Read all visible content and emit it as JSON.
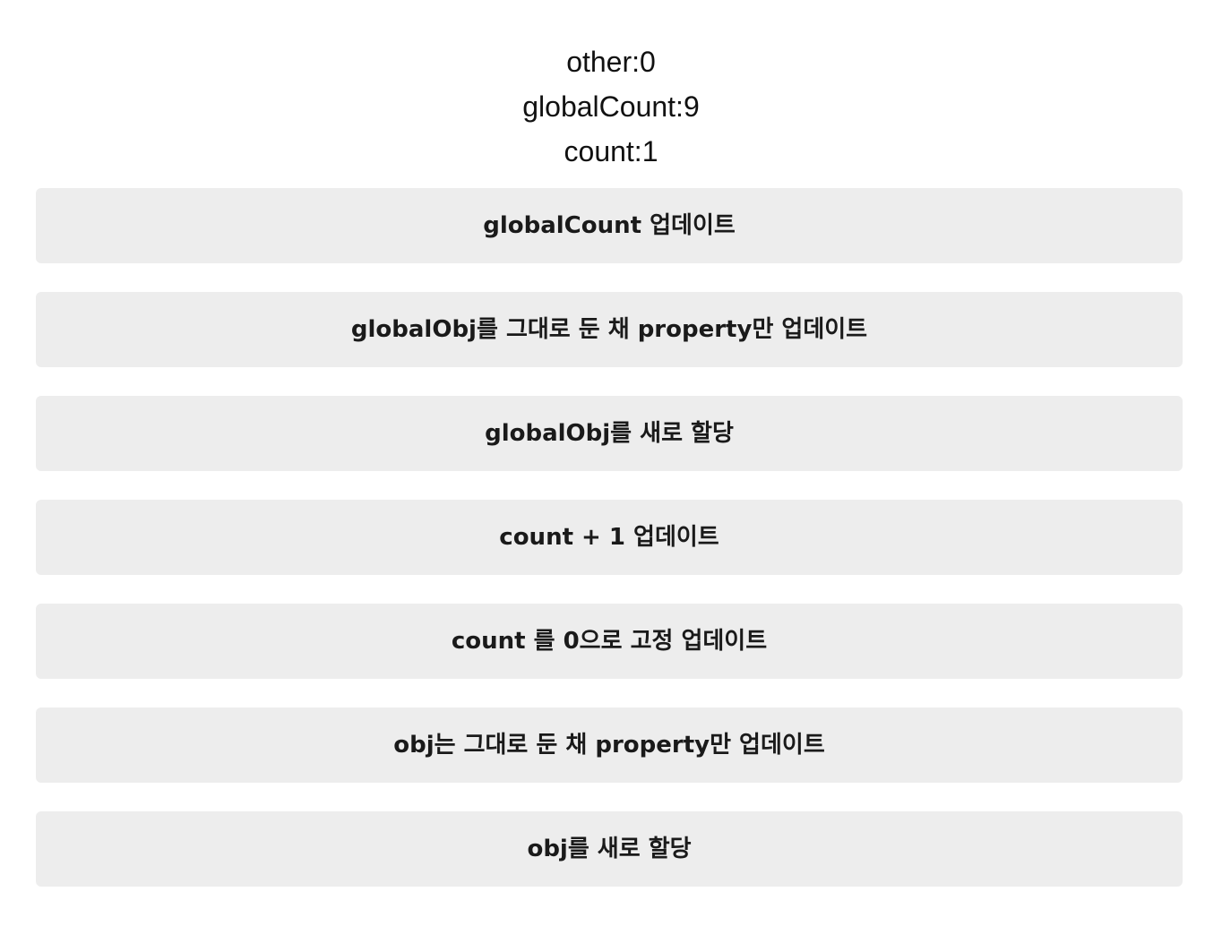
{
  "stats": {
    "other": "other:0",
    "global_count": "globalCount:9",
    "count": "count:1"
  },
  "buttons": [
    {
      "label": "globalCount 업데이트"
    },
    {
      "label": "globalObj를 그대로 둔 채 property만 업데이트"
    },
    {
      "label": "globalObj를 새로 할당"
    },
    {
      "label": "count + 1 업데이트"
    },
    {
      "label": "count 를 0으로 고정 업데이트"
    },
    {
      "label": "obj는 그대로 둔 채 property만 업데이트"
    },
    {
      "label": "obj를 새로 할당"
    }
  ],
  "colors": {
    "button_background": "#ededed",
    "text": "#111111",
    "page_background": "#ffffff"
  }
}
